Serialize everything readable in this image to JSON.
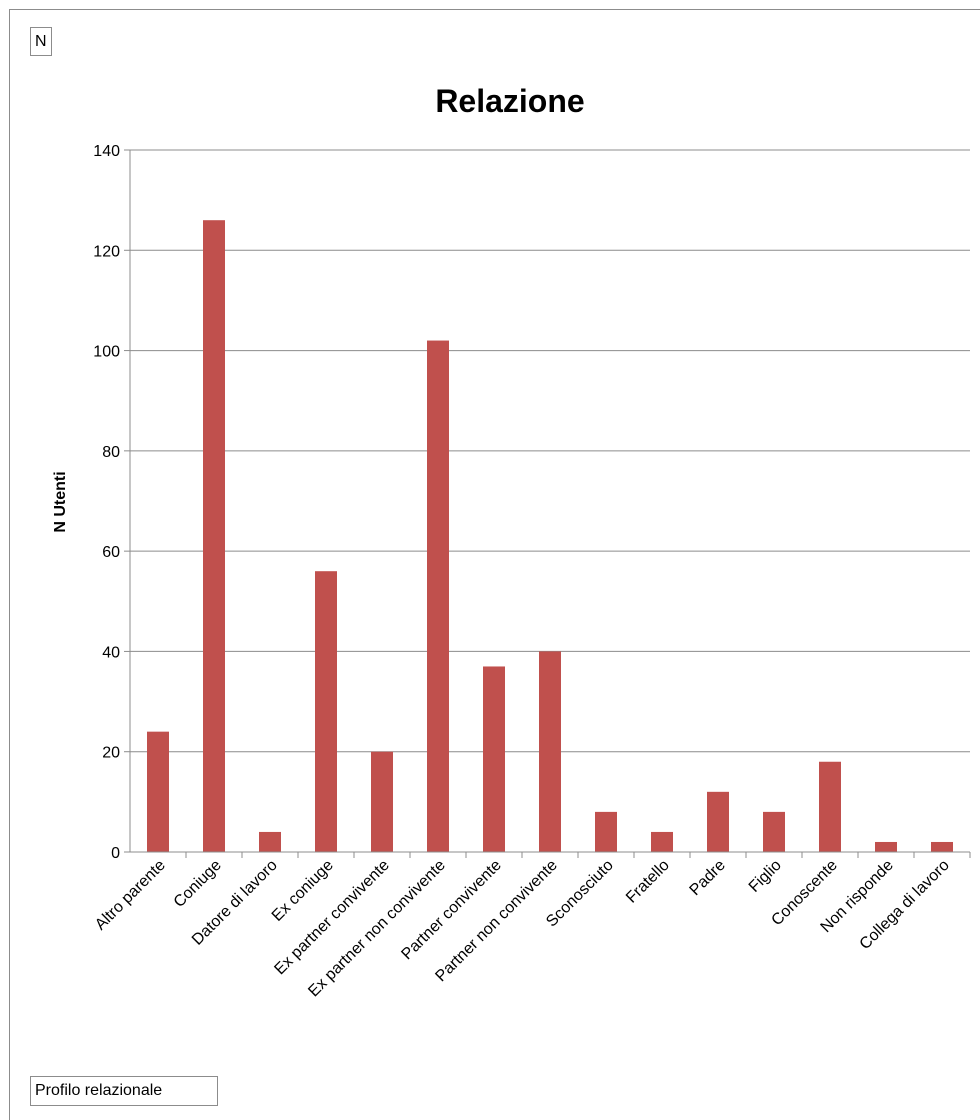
{
  "field_tag": "N",
  "table_tag": "Profilo relazionale",
  "colors": {
    "bar": "#c0504d",
    "grid": "#8c8c8c",
    "axis": "#8c8c8c"
  },
  "chart_data": {
    "type": "bar",
    "title": "Relazione",
    "xlabel": "",
    "ylabel": "N Utenti",
    "ylim": [
      0,
      140
    ],
    "yticks": [
      0,
      20,
      40,
      60,
      80,
      100,
      120,
      140
    ],
    "grid": true,
    "legend": "none",
    "categories": [
      "Altro parente",
      "Coniuge",
      "Datore di lavoro",
      "Ex coniuge",
      "Ex partner convivente",
      "Ex partner non convivente",
      "Partner convivente",
      "Partner non convivente",
      "Sconosciuto",
      "Fratello",
      "Padre",
      "Figlio",
      "Conoscente",
      "Non risponde",
      "Collega di lavoro"
    ],
    "values": [
      24,
      126,
      4,
      56,
      20,
      102,
      37,
      40,
      8,
      4,
      12,
      8,
      18,
      2,
      2
    ]
  }
}
